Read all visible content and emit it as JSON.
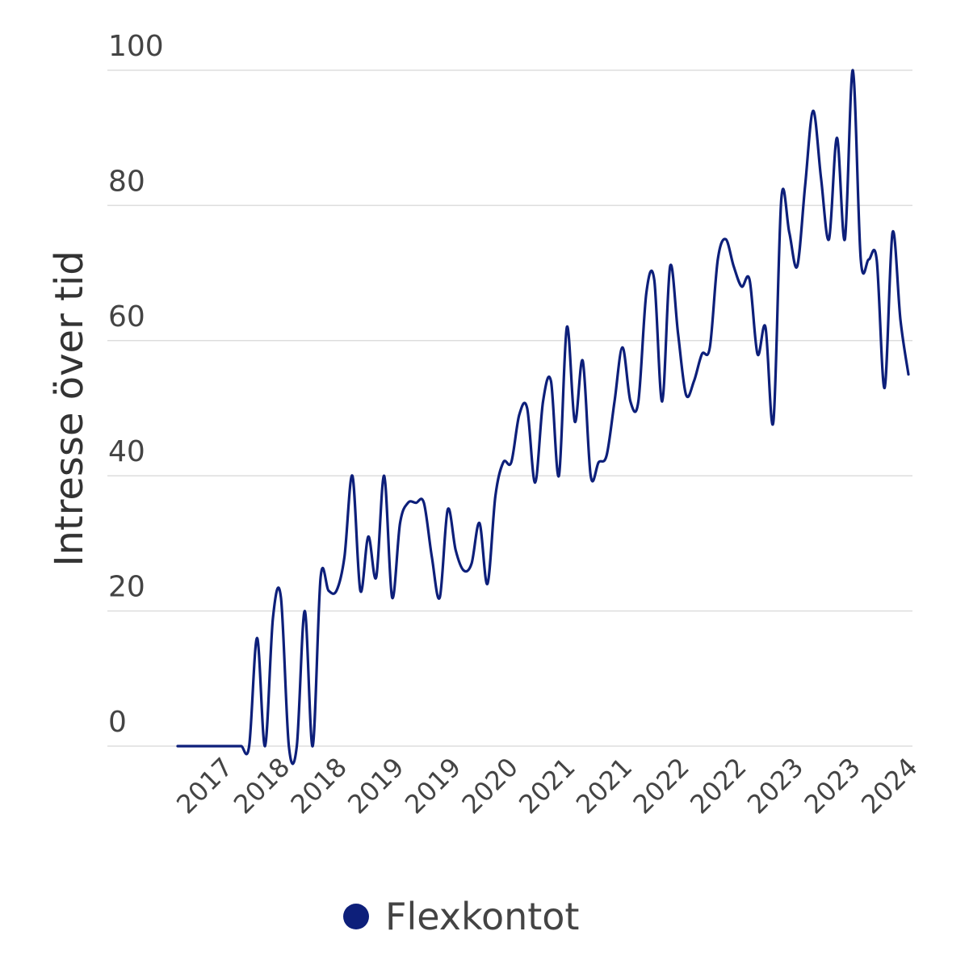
{
  "chart_data": {
    "type": "line",
    "title": "",
    "xlabel": "",
    "ylabel": "Intresse över tid",
    "ylim": [
      0,
      100
    ],
    "yticks": [
      0,
      20,
      40,
      60,
      80,
      100
    ],
    "grid": true,
    "legend_position": "bottom",
    "x_tick_labels": [
      "2017",
      "2018",
      "2018",
      "2019",
      "2019",
      "2020",
      "2021",
      "2021",
      "2022",
      "2022",
      "2023",
      "2023",
      "2024"
    ],
    "series": [
      {
        "name": "Flexkontot",
        "color": "#0d1f7a",
        "values": [
          0,
          0,
          0,
          0,
          0,
          0,
          0,
          0,
          0,
          0,
          16,
          0,
          19,
          22,
          0,
          0,
          20,
          0,
          25,
          23,
          23,
          28,
          40,
          23,
          31,
          25,
          40,
          22,
          33,
          36,
          36,
          36,
          28,
          22,
          35,
          29,
          26,
          27,
          33,
          24,
          37,
          42,
          42,
          49,
          50,
          39,
          51,
          54,
          40,
          62,
          48,
          57,
          40,
          42,
          43,
          51,
          59,
          51,
          51,
          67,
          69,
          51,
          71,
          61,
          52,
          54,
          58,
          59,
          72,
          75,
          71,
          68,
          69,
          58,
          62,
          48,
          81,
          76,
          71,
          83,
          94,
          84,
          75,
          90,
          75,
          100,
          72,
          72,
          72,
          53,
          76,
          63,
          55
        ]
      }
    ]
  },
  "legend": {
    "label": "Flexkontot",
    "color": "#0d1f7a"
  },
  "axis": {
    "ylabel": "Intresse över tid"
  }
}
